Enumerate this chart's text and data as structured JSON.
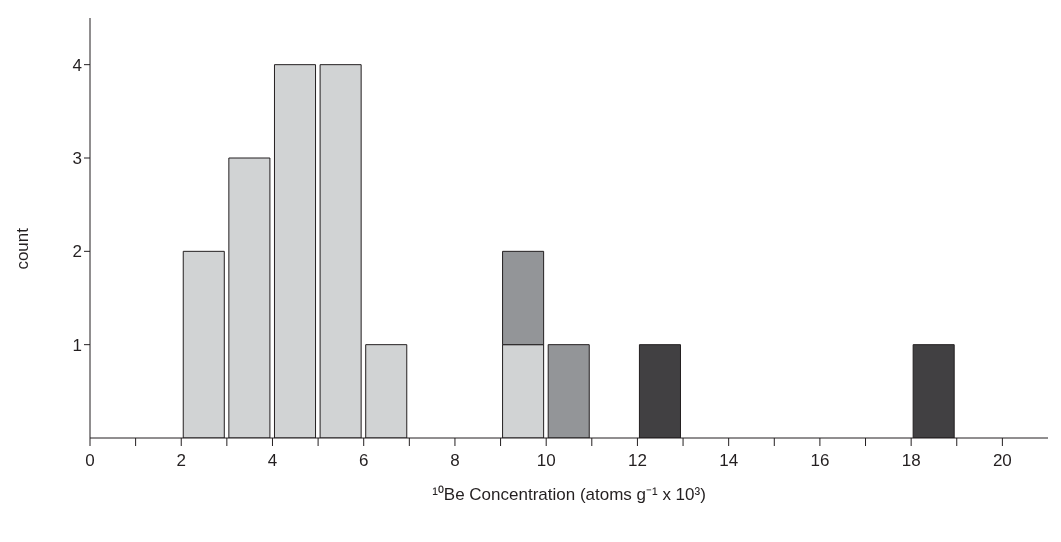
{
  "chart_data": {
    "type": "bar",
    "xlabel": "¹⁰Be Concentration (atoms g⁻¹ x 10³)",
    "ylabel": "count",
    "stacked": true,
    "x": [
      2.5,
      3.5,
      4.5,
      5.5,
      6.5,
      7.5,
      8.5,
      9.5,
      10.5,
      11.5,
      12.5,
      13.5,
      14.5,
      15.5,
      16.5,
      17.5,
      18.5
    ],
    "series": [
      {
        "color": "#d1d3d4",
        "values": [
          2,
          3,
          4,
          4,
          1,
          0,
          0,
          1,
          0,
          0,
          0,
          0,
          0,
          0,
          0,
          0,
          0
        ]
      },
      {
        "color": "#939598",
        "values": [
          0,
          0,
          0,
          0,
          0,
          0,
          0,
          1,
          1,
          0,
          0,
          0,
          0,
          0,
          0,
          0,
          0
        ]
      },
      {
        "color": "#414042",
        "values": [
          0,
          0,
          0,
          0,
          0,
          0,
          0,
          0,
          0,
          0,
          1,
          0,
          0,
          0,
          0,
          0,
          1
        ]
      }
    ],
    "xlim": [
      0,
      21
    ],
    "xticks": [
      0,
      {
        "value": 1,
        "label": null
      },
      2,
      {
        "value": 3,
        "label": null
      },
      4,
      {
        "value": 5,
        "label": null
      },
      6,
      {
        "value": 7,
        "label": null
      },
      8,
      {
        "value": 9,
        "label": null
      },
      10,
      {
        "value": 11,
        "label": null
      },
      12,
      {
        "value": 13,
        "label": null
      },
      14,
      {
        "value": 15,
        "label": null
      },
      16,
      {
        "value": 17,
        "label": null
      },
      18,
      {
        "value": 19,
        "label": null
      },
      20
    ],
    "ylim": [
      0,
      4.5
    ],
    "yticks": [
      1,
      2,
      3,
      4
    ],
    "grid": false,
    "legend": false
  }
}
